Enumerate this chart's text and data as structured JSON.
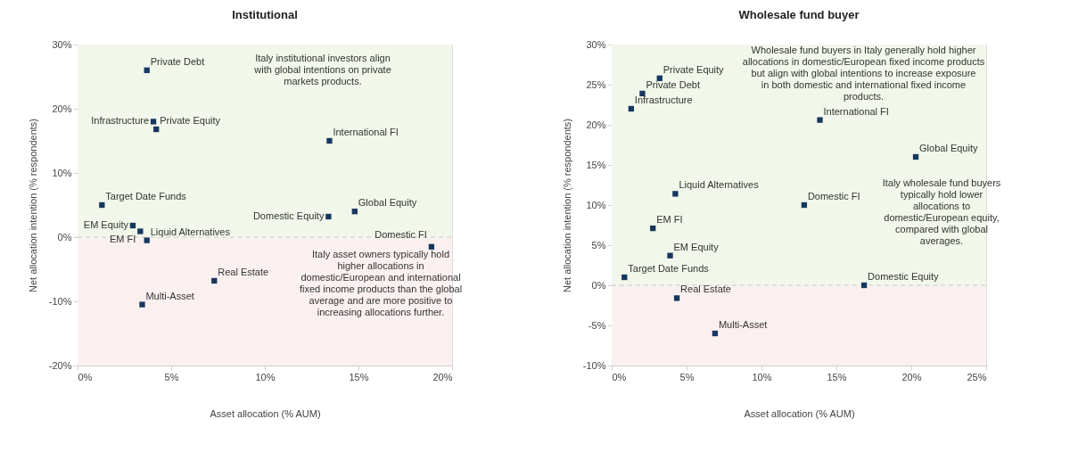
{
  "chart_data": [
    {
      "type": "scatter",
      "title": "Institutional",
      "xlabel": "Asset allocation (% AUM)",
      "ylabel": "Net allocation intention (% respondents)",
      "marker": "square",
      "grid": false,
      "legend": false,
      "xlim": [
        0,
        20
      ],
      "xticks": [
        {
          "value": 0,
          "label": "0%"
        },
        {
          "value": 5,
          "label": "5%"
        },
        {
          "value": 10,
          "label": "10%"
        },
        {
          "value": 15,
          "label": "15%"
        },
        {
          "value": 20,
          "label": "20%"
        }
      ],
      "ylim": [
        -20,
        30
      ],
      "yticks": [
        {
          "value": -20,
          "label": "-20%"
        },
        {
          "value": -10,
          "label": "-10%"
        },
        {
          "value": 0,
          "label": "0%"
        },
        {
          "value": 10,
          "label": "10%"
        },
        {
          "value": 20,
          "label": "20%"
        },
        {
          "value": 30,
          "label": "30%"
        }
      ],
      "bands": [
        {
          "axis": "y",
          "from": 0,
          "to": 30,
          "color": "#f1f7ea"
        },
        {
          "axis": "y",
          "from": -20,
          "to": 0,
          "color": "#fbf0f0"
        }
      ],
      "ref_lines": [
        {
          "axis": "y",
          "value": 0,
          "color": "#c8c8c8",
          "line_style": "dashed"
        }
      ],
      "series": [
        {
          "name": "Private Debt",
          "color": "#17375e",
          "x": [
            3.7
          ],
          "values": [
            26
          ]
        },
        {
          "name": "Infrastructure",
          "color": "#17375e",
          "x": [
            4.05
          ],
          "values": [
            18
          ]
        },
        {
          "name": "Private Equity",
          "color": "#17375e",
          "x": [
            4.2
          ],
          "values": [
            16.8
          ]
        },
        {
          "name": "International FI",
          "color": "#17375e",
          "x": [
            13.45
          ],
          "values": [
            15
          ]
        },
        {
          "name": "Target Date Funds",
          "color": "#17375e",
          "x": [
            1.3
          ],
          "values": [
            5
          ]
        },
        {
          "name": "Global Equity",
          "color": "#17375e",
          "x": [
            14.8
          ],
          "values": [
            4
          ]
        },
        {
          "name": "Domestic Equity",
          "color": "#17375e",
          "x": [
            13.4
          ],
          "values": [
            3.2
          ]
        },
        {
          "name": "EM Equity",
          "color": "#17375e",
          "x": [
            2.95
          ],
          "values": [
            1.8
          ]
        },
        {
          "name": "EM FI",
          "color": "#17375e",
          "x": [
            3.35
          ],
          "values": [
            0.9
          ]
        },
        {
          "name": "Liquid Alternatives",
          "color": "#17375e",
          "x": [
            3.7
          ],
          "values": [
            -0.5
          ]
        },
        {
          "name": "Domestic FI",
          "color": "#17375e",
          "x": [
            18.9
          ],
          "values": [
            -1.5
          ]
        },
        {
          "name": "Real Estate",
          "color": "#17375e",
          "x": [
            7.3
          ],
          "values": [
            -6.8
          ]
        },
        {
          "name": "Multi-Asset",
          "color": "#17375e",
          "x": [
            3.45
          ],
          "values": [
            -10.5
          ]
        }
      ],
      "annotations": [
        "Italy institutional investors align with global intentions on private markets products.",
        "Italy asset owners typically hold higher allocations in domestic/European and international fixed income products than the global average and are more positive to increasing allocations further."
      ]
    },
    {
      "type": "scatter",
      "title": "Wholesale fund buyer",
      "xlabel": "Asset allocation (% AUM)",
      "ylabel": "Net allocation intention (% respondents)",
      "marker": "square",
      "grid": false,
      "legend": false,
      "xlim": [
        0,
        25
      ],
      "xticks": [
        {
          "value": 0,
          "label": "0%"
        },
        {
          "value": 5,
          "label": "5%"
        },
        {
          "value": 10,
          "label": "10%"
        },
        {
          "value": 15,
          "label": "15%"
        },
        {
          "value": 20,
          "label": "20%"
        },
        {
          "value": 25,
          "label": "25%"
        }
      ],
      "ylim": [
        -10,
        30
      ],
      "yticks": [
        {
          "value": -10,
          "label": "-10%"
        },
        {
          "value": -5,
          "label": "-5%"
        },
        {
          "value": 0,
          "label": "0%"
        },
        {
          "value": 5,
          "label": "5%"
        },
        {
          "value": 10,
          "label": "10%"
        },
        {
          "value": 15,
          "label": "15%"
        },
        {
          "value": 20,
          "label": "20%"
        },
        {
          "value": 25,
          "label": "25%"
        },
        {
          "value": 30,
          "label": "30%"
        }
      ],
      "bands": [
        {
          "axis": "y",
          "from": 0,
          "to": 30,
          "color": "#f1f7ea"
        },
        {
          "axis": "y",
          "from": -10,
          "to": 0,
          "color": "#fbf0f0"
        }
      ],
      "ref_lines": [
        {
          "axis": "y",
          "value": 0,
          "color": "#c8c8c8",
          "line_style": "dashed"
        }
      ],
      "series": [
        {
          "name": "Private Equity",
          "color": "#17375e",
          "x": [
            3.2
          ],
          "values": [
            25.8
          ]
        },
        {
          "name": "Private Debt",
          "color": "#17375e",
          "x": [
            2.05
          ],
          "values": [
            23.9
          ]
        },
        {
          "name": "Infrastructure",
          "color": "#17375e",
          "x": [
            1.3
          ],
          "values": [
            22
          ]
        },
        {
          "name": "International FI",
          "color": "#17375e",
          "x": [
            13.9
          ],
          "values": [
            20.6
          ]
        },
        {
          "name": "Global Equity",
          "color": "#17375e",
          "x": [
            20.3
          ],
          "values": [
            16
          ]
        },
        {
          "name": "Liquid Alternatives",
          "color": "#17375e",
          "x": [
            4.25
          ],
          "values": [
            11.4
          ]
        },
        {
          "name": "Domestic FI",
          "color": "#17375e",
          "x": [
            12.85
          ],
          "values": [
            10
          ]
        },
        {
          "name": "EM FI",
          "color": "#17375e",
          "x": [
            2.75
          ],
          "values": [
            7.1
          ]
        },
        {
          "name": "EM Equity",
          "color": "#17375e",
          "x": [
            3.9
          ],
          "values": [
            3.7
          ]
        },
        {
          "name": "Target Date Funds",
          "color": "#17375e",
          "x": [
            0.85
          ],
          "values": [
            1
          ]
        },
        {
          "name": "Domestic Equity",
          "color": "#17375e",
          "x": [
            16.85
          ],
          "values": [
            0
          ]
        },
        {
          "name": "Real Estate",
          "color": "#17375e",
          "x": [
            4.35
          ],
          "values": [
            -1.6
          ]
        },
        {
          "name": "Multi-Asset",
          "color": "#17375e",
          "x": [
            6.9
          ],
          "values": [
            -6
          ]
        }
      ],
      "annotations": [
        "Wholesale fund buyers in Italy generally hold higher allocations in domestic/European fixed income products but align with global intentions to increase exposure in both domestic and international fixed income products.",
        "Italy wholesale fund buyers typically hold lower allocations to domestic/European equity, compared with global averages."
      ]
    }
  ]
}
